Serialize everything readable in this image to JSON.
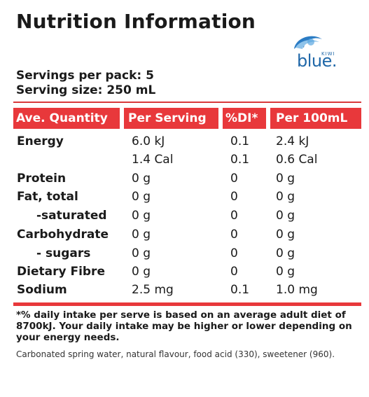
{
  "title": "Nutrition Information",
  "logo": {
    "brand_small": "KIWI",
    "brand_word": "blue."
  },
  "servings": {
    "per_pack": "Servings per pack: 5",
    "size": "Serving size: 250 mL"
  },
  "table": {
    "headers": [
      "Ave. Quantity",
      "Per Serving",
      "%DI*",
      "Per 100mL"
    ],
    "rows": [
      [
        "Energy",
        "6.0 kJ",
        "0.1",
        "2.4 kJ"
      ],
      [
        "",
        "1.4 Cal",
        "0.1",
        "0.6 Cal"
      ],
      [
        "Protein",
        "0 g",
        "0",
        "0 g"
      ],
      [
        "Fat, total",
        "0 g",
        "0",
        "0 g"
      ],
      [
        "-saturated",
        "0 g",
        "0",
        "0 g"
      ],
      [
        "Carbohydrate",
        "0 g",
        "0",
        "0 g"
      ],
      [
        "- sugars",
        "0 g",
        "0",
        "0 g"
      ],
      [
        "Dietary Fibre",
        "0 g",
        "0",
        "0 g"
      ],
      [
        "Sodium",
        "2.5 mg",
        "0.1",
        "1.0 mg"
      ]
    ]
  },
  "footnote": "*% daily intake per serve is based on an average adult diet of 8700kJ. Your daily intake may be higher or lower depending on your energy needs.",
  "ingredients": "Carbonated spring water, natural flavour, food acid (330), sweetener (960).",
  "colors": {
    "accent_red": "#e8383b",
    "brand_blue": "#1f67a8"
  }
}
